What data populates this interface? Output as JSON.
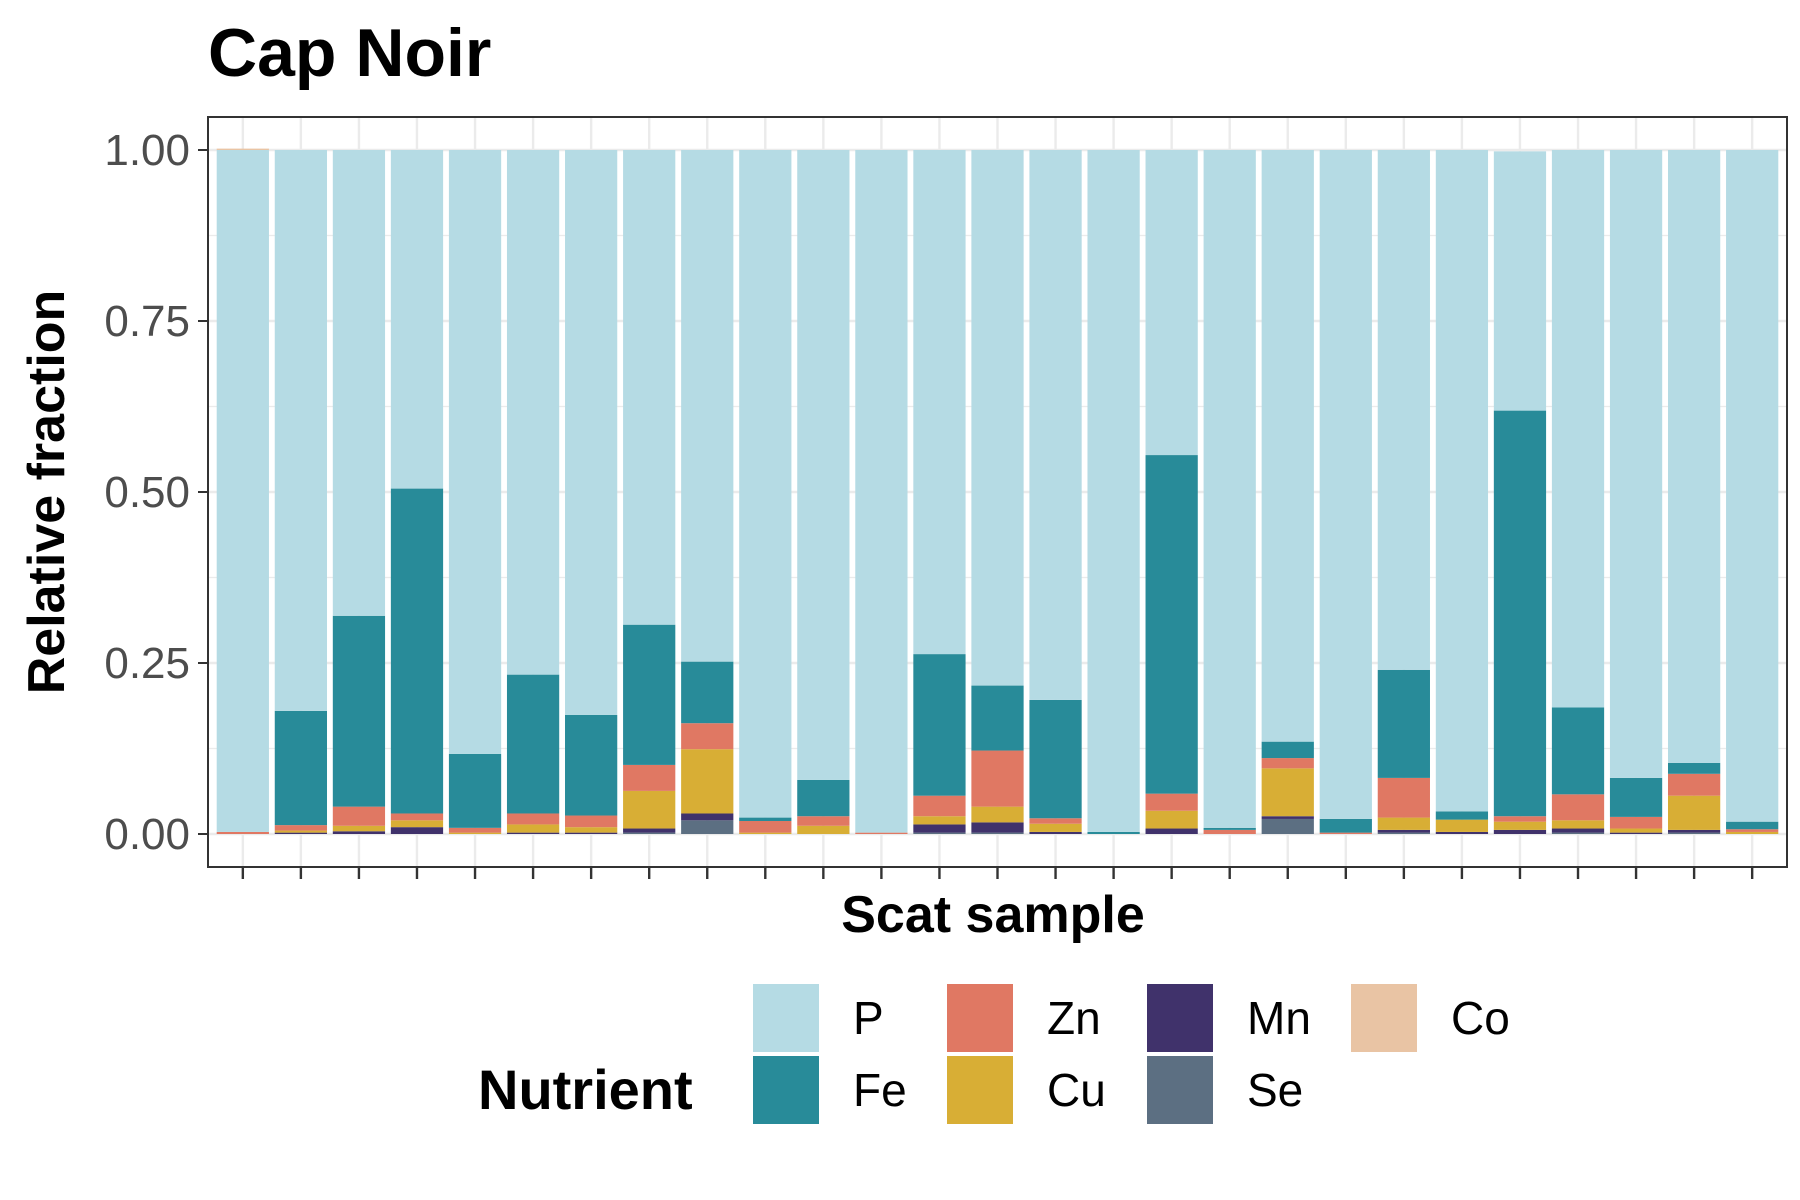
{
  "chart_data": {
    "type": "bar",
    "stacked": true,
    "title": "Cap Noir",
    "xlabel": "Scat sample",
    "ylabel": "Relative fraction",
    "ylim": [
      0,
      1
    ],
    "y_ticks": [
      "0.00",
      "0.25",
      "0.50",
      "0.75",
      "1.00"
    ],
    "grid": true,
    "legend": {
      "title": "Nutrient",
      "position": "bottom"
    },
    "series": [
      {
        "name": "Se",
        "color": "#5c6f82",
        "values": [
          0,
          0,
          0,
          0,
          0,
          0,
          0,
          0.002,
          0.02,
          0,
          0,
          0,
          0.002,
          0.002,
          0,
          0,
          0,
          0,
          0.022,
          0,
          0.002,
          0,
          0,
          0.002,
          0,
          0.002,
          0
        ]
      },
      {
        "name": "Mn",
        "color": "#40326b",
        "values": [
          0,
          0.002,
          0.004,
          0.01,
          0,
          0.002,
          0.002,
          0.006,
          0.01,
          0,
          0,
          0,
          0.012,
          0.015,
          0.003,
          0,
          0.008,
          0,
          0.004,
          0,
          0.004,
          0.003,
          0.006,
          0.006,
          0.002,
          0.004,
          0
        ]
      },
      {
        "name": "Cu",
        "color": "#d8ae35",
        "values": [
          0,
          0.003,
          0.008,
          0.01,
          0.002,
          0.012,
          0.008,
          0.055,
          0.094,
          0.002,
          0.012,
          0,
          0.012,
          0.023,
          0.012,
          0,
          0.026,
          0,
          0.07,
          0,
          0.018,
          0.018,
          0.012,
          0.012,
          0.006,
          0.05,
          0.003
        ]
      },
      {
        "name": "Zn",
        "color": "#e07863",
        "values": [
          0.003,
          0.008,
          0.028,
          0.01,
          0.007,
          0.016,
          0.017,
          0.038,
          0.038,
          0.017,
          0.014,
          0.002,
          0.03,
          0.082,
          0.008,
          0,
          0.025,
          0.006,
          0.015,
          0.002,
          0.058,
          0,
          0.008,
          0.038,
          0.017,
          0.032,
          0.004
        ]
      },
      {
        "name": "Fe",
        "color": "#288b99",
        "values": [
          0,
          0.167,
          0.279,
          0.475,
          0.108,
          0.203,
          0.147,
          0.205,
          0.09,
          0.005,
          0.053,
          0,
          0.207,
          0.095,
          0.173,
          0.003,
          0.495,
          0.003,
          0.024,
          0.02,
          0.158,
          0.012,
          0.593,
          0.127,
          0.057,
          0.016,
          0.011
        ]
      },
      {
        "name": "P",
        "color": "#b5dbe4",
        "values": [
          0.997,
          0.82,
          0.681,
          0.495,
          0.883,
          0.767,
          0.826,
          0.694,
          0.748,
          0.976,
          0.921,
          0.998,
          0.737,
          0.783,
          0.804,
          0.997,
          0.446,
          0.991,
          0.865,
          0.978,
          0.76,
          0.967,
          0.379,
          0.815,
          0.918,
          0.896,
          0.982
        ]
      },
      {
        "name": "Co",
        "color": "#e9c4a4",
        "values": [
          0.002,
          0,
          0,
          0,
          0,
          0,
          0,
          0,
          0,
          0,
          0,
          0,
          0,
          0,
          0,
          0,
          0,
          0,
          0,
          0,
          0,
          0,
          0,
          0,
          0,
          0,
          0
        ]
      }
    ],
    "legend_order": [
      "P",
      "Fe",
      "Zn",
      "Cu",
      "Mn",
      "Se",
      "Co"
    ]
  },
  "colors": {
    "panel_border": "#333333",
    "grid": "#ebebeb",
    "tick": "#333333"
  }
}
